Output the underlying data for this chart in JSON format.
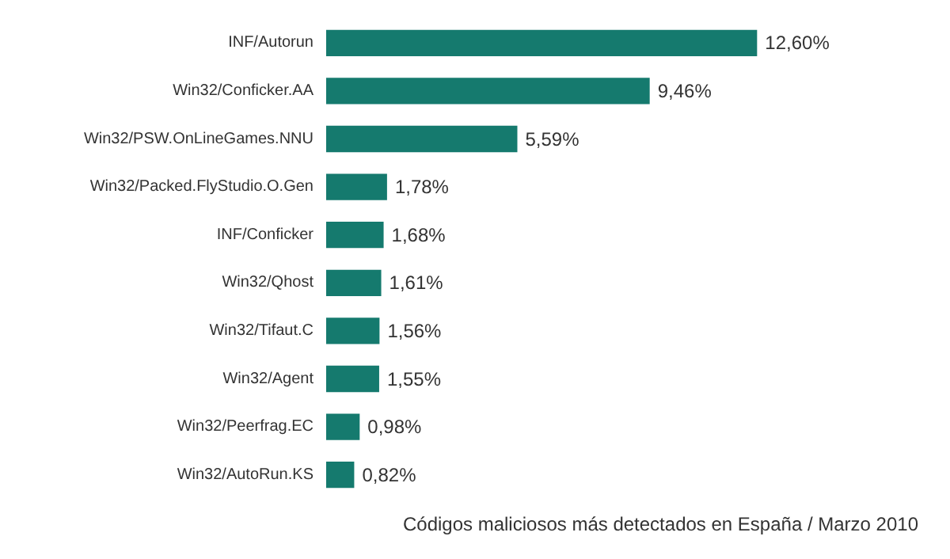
{
  "chart_data": {
    "type": "bar",
    "orientation": "horizontal",
    "categories": [
      "INF/Autorun",
      "Win32/Conficker.AA",
      "Win32/PSW.OnLineGames.NNU",
      "Win32/Packed.FlyStudio.O.Gen",
      "INF/Conficker",
      "Win32/Qhost",
      "Win32/Tifaut.C",
      "Win32/Agent",
      "Win32/Peerfrag.EC",
      "Win32/AutoRun.KS"
    ],
    "values": [
      12.6,
      9.46,
      5.59,
      1.78,
      1.68,
      1.61,
      1.56,
      1.55,
      0.98,
      0.82
    ],
    "value_labels": [
      "12,60%",
      "9,46%",
      "5,59%",
      "1,78%",
      "1,68%",
      "1,61%",
      "1,56%",
      "1,55%",
      "0,98%",
      "0,82%"
    ],
    "color": "#157a6e",
    "annotations": [
      "Códigos maliciosos más detectados en España / Marzo 2010"
    ]
  }
}
